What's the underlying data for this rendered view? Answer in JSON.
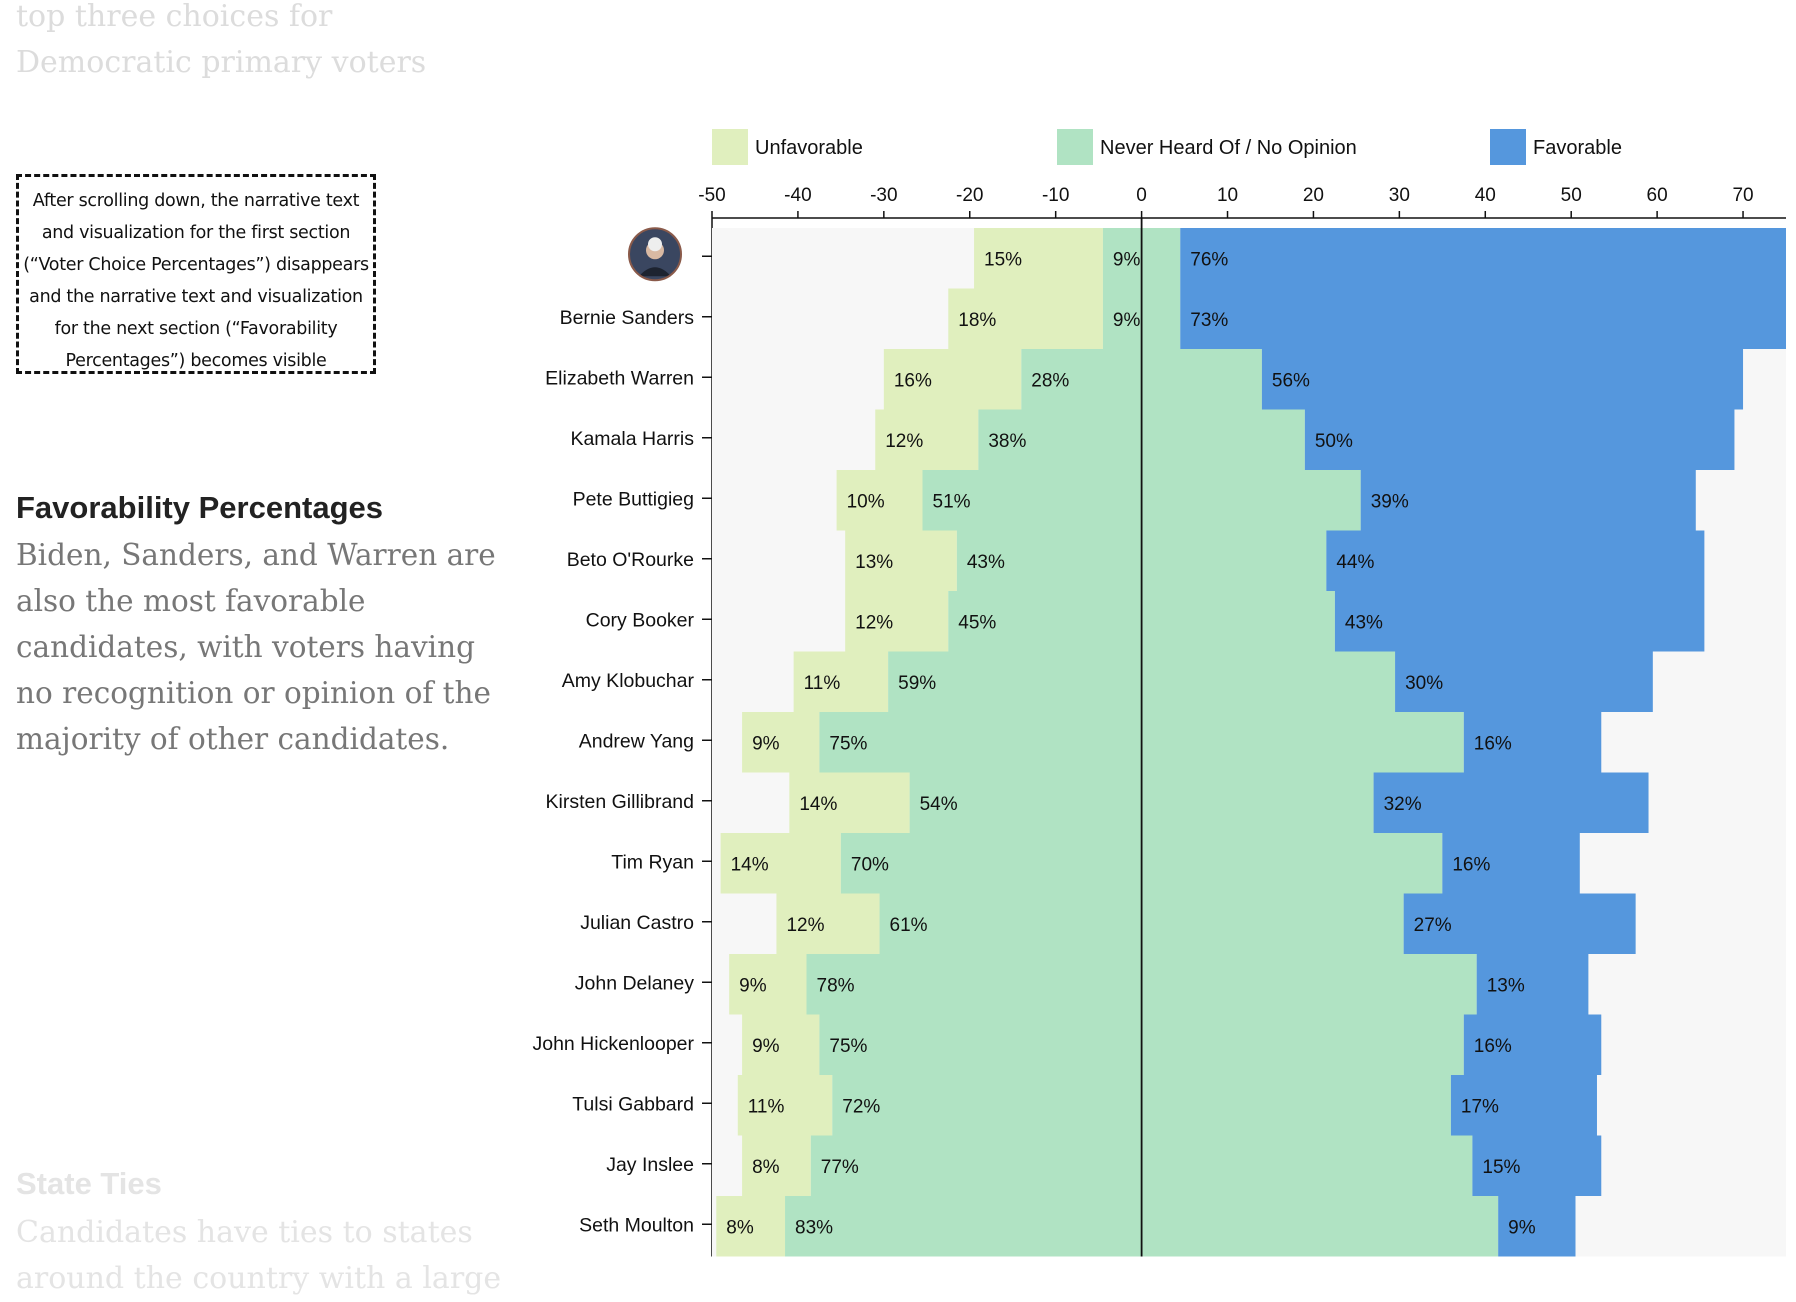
{
  "previous_section": {
    "text": "top three choices for Democratic primary voters"
  },
  "annotation": {
    "text": "After scrolling down, the narrative text and visualization for the first section (“Voter Choice Percentages”) disappears and the narrative text and visualization for the next section (“Favorability Percentages”) becomes visible"
  },
  "section": {
    "title": "Favorability Percentages",
    "body": "Biden, Sanders, and Warren are also the most favorable candidates, with voters having no recognition or opinion of the majority of other candidates."
  },
  "next_section": {
    "title": "State Ties",
    "body": "Candidates have ties to states around the country with a large"
  },
  "colors": {
    "unfavorable": "#e0efbe",
    "neutral": "#b0e3c3",
    "favorable": "#5597dd",
    "background": "#f7f7f7"
  },
  "chart_data": {
    "type": "bar",
    "orientation": "horizontal-diverging",
    "xlim": [
      -50,
      75
    ],
    "x_ticks": [
      -50,
      -40,
      -30,
      -20,
      -10,
      0,
      10,
      20,
      30,
      40,
      50,
      60,
      70
    ],
    "legend": [
      "Unfavorable",
      "Never Heard Of / No Opinion",
      "Favorable"
    ],
    "legend_position": "top",
    "first_row_is_photo": true,
    "categories": [
      "",
      "Bernie Sanders",
      "Elizabeth Warren",
      "Kamala Harris",
      "Pete Buttigieg",
      "Beto O'Rourke",
      "Cory Booker",
      "Amy Klobuchar",
      "Andrew Yang",
      "Kirsten Gillibrand",
      "Tim Ryan",
      "Julian Castro",
      "John Delaney",
      "John Hickenlooper",
      "Tulsi Gabbard",
      "Jay Inslee",
      "Seth Moulton"
    ],
    "series": [
      {
        "name": "Unfavorable",
        "values": [
          15,
          18,
          16,
          12,
          10,
          13,
          12,
          11,
          9,
          14,
          14,
          12,
          9,
          9,
          11,
          8,
          8
        ]
      },
      {
        "name": "Never Heard Of / No Opinion",
        "values": [
          9,
          9,
          28,
          38,
          51,
          43,
          45,
          59,
          75,
          54,
          70,
          61,
          78,
          75,
          72,
          77,
          83
        ]
      },
      {
        "name": "Favorable",
        "values": [
          76,
          73,
          56,
          50,
          39,
          44,
          43,
          30,
          16,
          32,
          16,
          27,
          13,
          16,
          17,
          15,
          9
        ]
      }
    ],
    "value_labels": {
      "Unfavorable": [
        "15%",
        "18%",
        "16%",
        "12%",
        "10%",
        "13%",
        "12%",
        "11%",
        "9%",
        "14%",
        "14%",
        "12%",
        "9%",
        "9%",
        "11%",
        "8%",
        "8%"
      ],
      "Never Heard Of / No Opinion": [
        "9%",
        "9%",
        "28%",
        "38%",
        "51%",
        "43%",
        "45%",
        "59%",
        "75%",
        "54%",
        "70%",
        "61%",
        "78%",
        "75%",
        "72%",
        "77%",
        "83%"
      ],
      "Favorable": [
        "76%",
        "73%",
        "56%",
        "50%",
        "39%",
        "44%",
        "43%",
        "30%",
        "16%",
        "32%",
        "16%",
        "27%",
        "13%",
        "16%",
        "17%",
        "15%",
        "9%"
      ]
    }
  }
}
